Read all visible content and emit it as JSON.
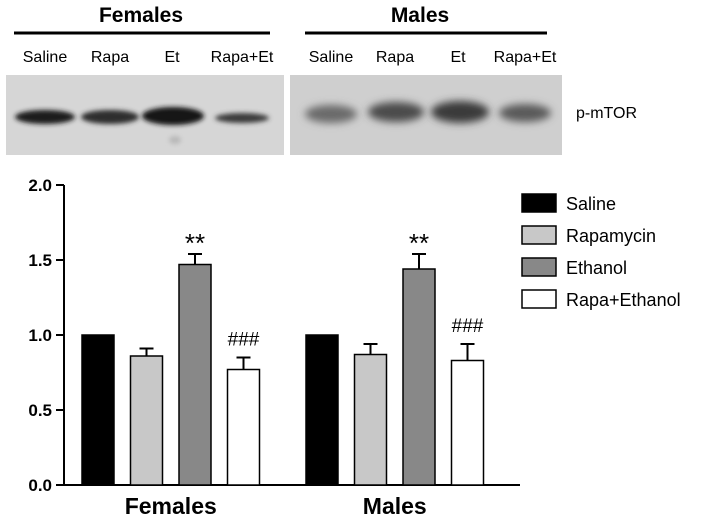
{
  "blot": {
    "group_labels": [
      "Females",
      "Males"
    ],
    "lane_labels": [
      [
        "Saline",
        "Rapa",
        "Et",
        "Rapa+Et"
      ],
      [
        "Saline",
        "Rapa",
        "Et",
        "Rapa+Et"
      ]
    ],
    "protein_label": "p-mTOR"
  },
  "chart_data": {
    "type": "bar",
    "categories": [
      "Females",
      "Males"
    ],
    "series": [
      {
        "name": "Saline",
        "color": "#000000",
        "values": [
          1.0,
          1.0
        ],
        "errors": [
          0,
          0
        ]
      },
      {
        "name": "Rapamycin",
        "color": "#c8c8c8",
        "values": [
          0.86,
          0.87
        ],
        "errors": [
          0.05,
          0.07
        ]
      },
      {
        "name": "Ethanol",
        "color": "#888888",
        "values": [
          1.47,
          1.44
        ],
        "errors": [
          0.07,
          0.1
        ]
      },
      {
        "name": "Rapa+Ethanol",
        "color": "#ffffff",
        "values": [
          0.77,
          0.83
        ],
        "errors": [
          0.08,
          0.11
        ]
      }
    ],
    "annotations": [
      {
        "category": "Females",
        "series": "Ethanol",
        "text": "**"
      },
      {
        "category": "Females",
        "series": "Rapa+Ethanol",
        "text": "###"
      },
      {
        "category": "Males",
        "series": "Ethanol",
        "text": "**"
      },
      {
        "category": "Males",
        "series": "Rapa+Ethanol",
        "text": "###"
      }
    ],
    "ylim": [
      0,
      2.0
    ],
    "yticks": [
      "0.0",
      "0.5",
      "1.0",
      "1.5",
      "2.0"
    ],
    "grid": false,
    "legend_position": "top-right"
  }
}
